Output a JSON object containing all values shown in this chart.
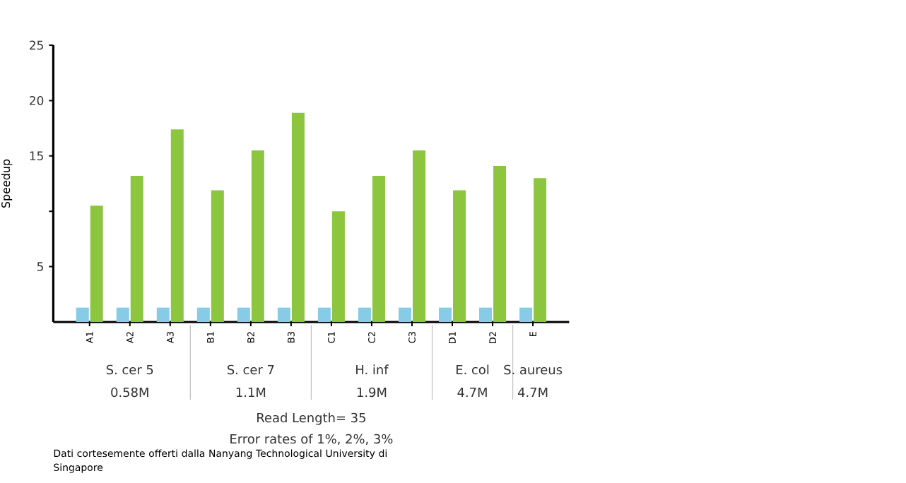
{
  "chart_data": {
    "type": "bar",
    "ylabel": "Speedup",
    "categories": [
      "A1",
      "A2",
      "A3",
      "B1",
      "B2",
      "B3",
      "C1",
      "C2",
      "C3",
      "D1",
      "D2",
      "E"
    ],
    "series": [
      {
        "color": "#87cbe6",
        "values": [
          1.3,
          1.3,
          1.3,
          1.3,
          1.3,
          1.3,
          1.3,
          1.3,
          1.3,
          1.3,
          1.3,
          1.3
        ]
      },
      {
        "color": "#8cc63f",
        "values": [
          10.5,
          13.2,
          17.4,
          11.9,
          15.5,
          18.9,
          10.0,
          13.2,
          15.5,
          11.9,
          14.1,
          13.0
        ]
      }
    ],
    "ylim": [
      0,
      25
    ],
    "yticks": [
      5,
      {
        "value": 10,
        "label": null
      },
      15,
      20,
      25
    ],
    "annotations": [
      "S. cer 5",
      "0.58M",
      "S. cer 7",
      "1.1M",
      "H. inf",
      "1.9M",
      "E. col",
      "4.7M",
      "S. aureus",
      "4.7M",
      "Read Length= 35",
      "Error rates of 1%, 2%, 3%",
      "Dati cortesemente offerti dalla Nanyang Technological University di Singapore"
    ]
  }
}
